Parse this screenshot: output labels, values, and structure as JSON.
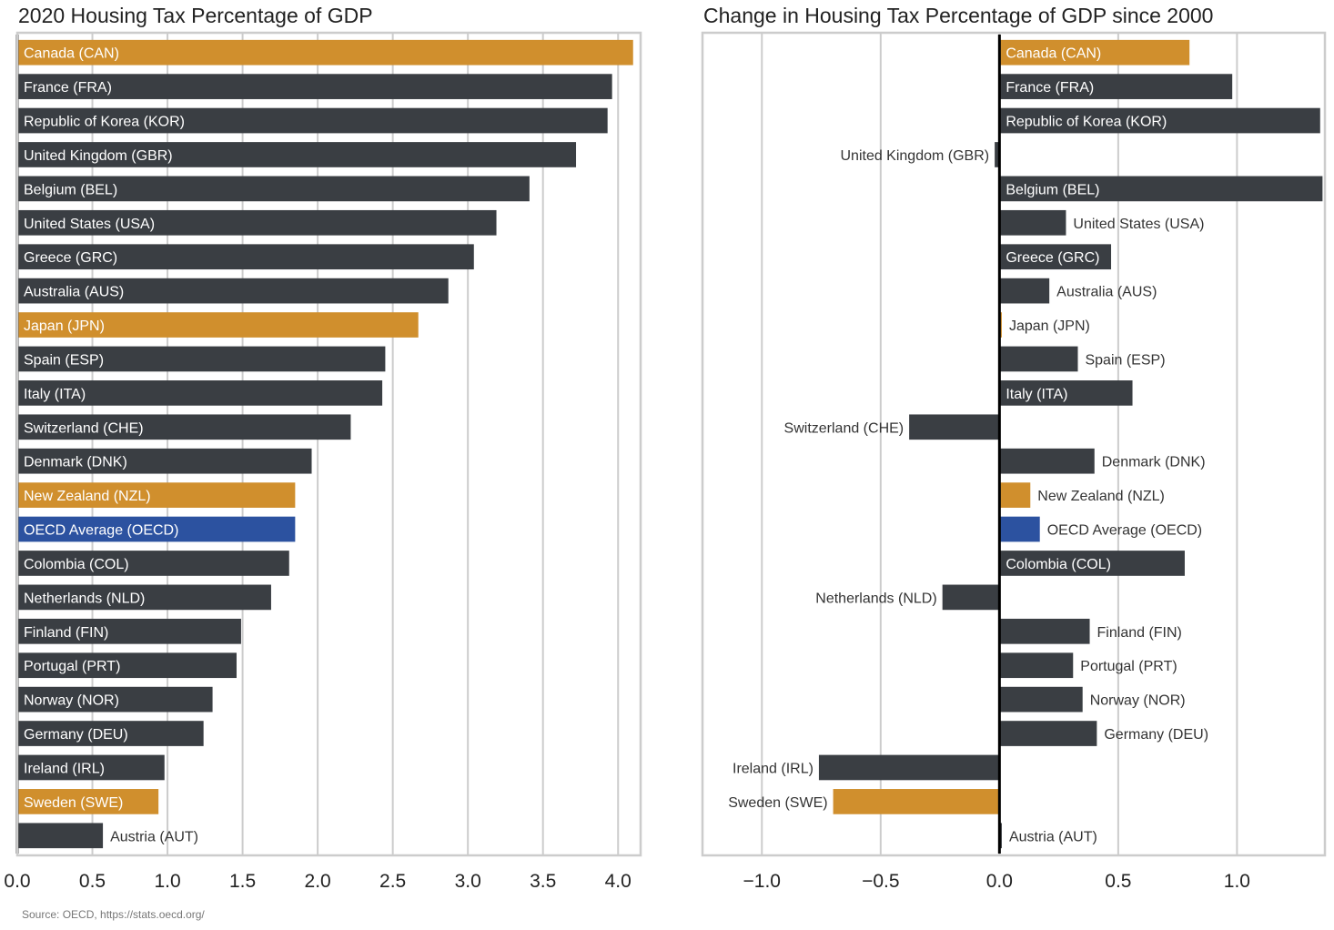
{
  "source_note": "Source: OECD, https://stats.oecd.org/",
  "colors": {
    "default": "#3a3e43",
    "highlight": "#d08f2d",
    "oecd": "#2c52a0",
    "grid": "#cccccc",
    "frame": "#cccccc",
    "zero_line": "#000000",
    "label_inside": "#ffffff",
    "label_outside": "#333333"
  },
  "chart_data": [
    {
      "type": "bar",
      "orientation": "horizontal",
      "title": "2020 Housing Tax Percentage of GDP",
      "xlabel": "",
      "ylabel": "",
      "xlim": [
        0,
        4.15
      ],
      "xticks": [
        0.0,
        0.5,
        1.0,
        1.5,
        2.0,
        2.5,
        3.0,
        3.5,
        4.0
      ],
      "xtick_labels": [
        "0.0",
        "0.5",
        "1.0",
        "1.5",
        "2.0",
        "2.5",
        "3.0",
        "3.5",
        "4.0"
      ],
      "grid": true,
      "categories": [
        "Canada (CAN)",
        "France (FRA)",
        "Republic of Korea (KOR)",
        "United Kingdom (GBR)",
        "Belgium (BEL)",
        "United States (USA)",
        "Greece (GRC)",
        "Australia (AUS)",
        "Japan (JPN)",
        "Spain (ESP)",
        "Italy (ITA)",
        "Switzerland (CHE)",
        "Denmark (DNK)",
        "New Zealand (NZL)",
        "OECD Average (OECD)",
        "Colombia (COL)",
        "Netherlands (NLD)",
        "Finland (FIN)",
        "Portugal (PRT)",
        "Norway (NOR)",
        "Germany (DEU)",
        "Ireland (IRL)",
        "Sweden (SWE)",
        "Austria (AUT)"
      ],
      "values": [
        4.1,
        3.96,
        3.93,
        3.72,
        3.41,
        3.19,
        3.04,
        2.87,
        2.67,
        2.45,
        2.43,
        2.22,
        1.96,
        1.85,
        1.85,
        1.81,
        1.69,
        1.49,
        1.46,
        1.3,
        1.24,
        0.98,
        0.94,
        0.57
      ],
      "bar_color_groups": [
        "highlight",
        "default",
        "default",
        "default",
        "default",
        "default",
        "default",
        "default",
        "highlight",
        "default",
        "default",
        "default",
        "default",
        "highlight",
        "oecd",
        "default",
        "default",
        "default",
        "default",
        "default",
        "default",
        "default",
        "highlight",
        "default"
      ],
      "label_position": [
        "inside",
        "inside",
        "inside",
        "inside",
        "inside",
        "inside",
        "inside",
        "inside",
        "inside",
        "inside",
        "inside",
        "inside",
        "inside",
        "inside",
        "inside",
        "inside",
        "inside",
        "inside",
        "inside",
        "inside",
        "inside",
        "inside",
        "inside",
        "outside"
      ]
    },
    {
      "type": "bar",
      "orientation": "horizontal",
      "title": "Change in Housing Tax Percentage of GDP since 2000",
      "xlabel": "",
      "ylabel": "",
      "xlim": [
        -1.25,
        1.37
      ],
      "xticks": [
        -1.0,
        -0.5,
        0.0,
        0.5,
        1.0
      ],
      "xtick_labels": [
        "−1.0",
        "−0.5",
        "0.0",
        "0.5",
        "1.0"
      ],
      "grid": true,
      "categories": [
        "Canada (CAN)",
        "France (FRA)",
        "Republic of Korea (KOR)",
        "United Kingdom (GBR)",
        "Belgium (BEL)",
        "United States (USA)",
        "Greece (GRC)",
        "Australia (AUS)",
        "Japan (JPN)",
        "Spain (ESP)",
        "Italy (ITA)",
        "Switzerland (CHE)",
        "Denmark (DNK)",
        "New Zealand (NZL)",
        "OECD Average (OECD)",
        "Colombia (COL)",
        "Netherlands (NLD)",
        "Finland (FIN)",
        "Portugal (PRT)",
        "Norway (NOR)",
        "Germany (DEU)",
        "Ireland (IRL)",
        "Sweden (SWE)",
        "Austria (AUT)"
      ],
      "values": [
        0.8,
        0.98,
        1.35,
        -0.02,
        1.36,
        0.28,
        0.47,
        0.21,
        0.01,
        0.33,
        0.56,
        -0.38,
        0.4,
        0.13,
        0.17,
        0.78,
        -0.24,
        0.38,
        0.31,
        0.35,
        0.41,
        -0.76,
        -0.7,
        0.01
      ],
      "bar_color_groups": [
        "highlight",
        "default",
        "default",
        "default",
        "default",
        "default",
        "default",
        "default",
        "highlight",
        "default",
        "default",
        "default",
        "default",
        "highlight",
        "oecd",
        "default",
        "default",
        "default",
        "default",
        "default",
        "default",
        "default",
        "highlight",
        "default"
      ],
      "label_position": [
        "inside",
        "inside",
        "inside",
        "outside",
        "inside",
        "outside",
        "inside",
        "outside",
        "outside",
        "outside",
        "inside",
        "outside",
        "outside",
        "outside",
        "outside",
        "inside",
        "outside",
        "outside",
        "outside",
        "outside",
        "outside",
        "outside",
        "outside",
        "outside"
      ]
    }
  ]
}
